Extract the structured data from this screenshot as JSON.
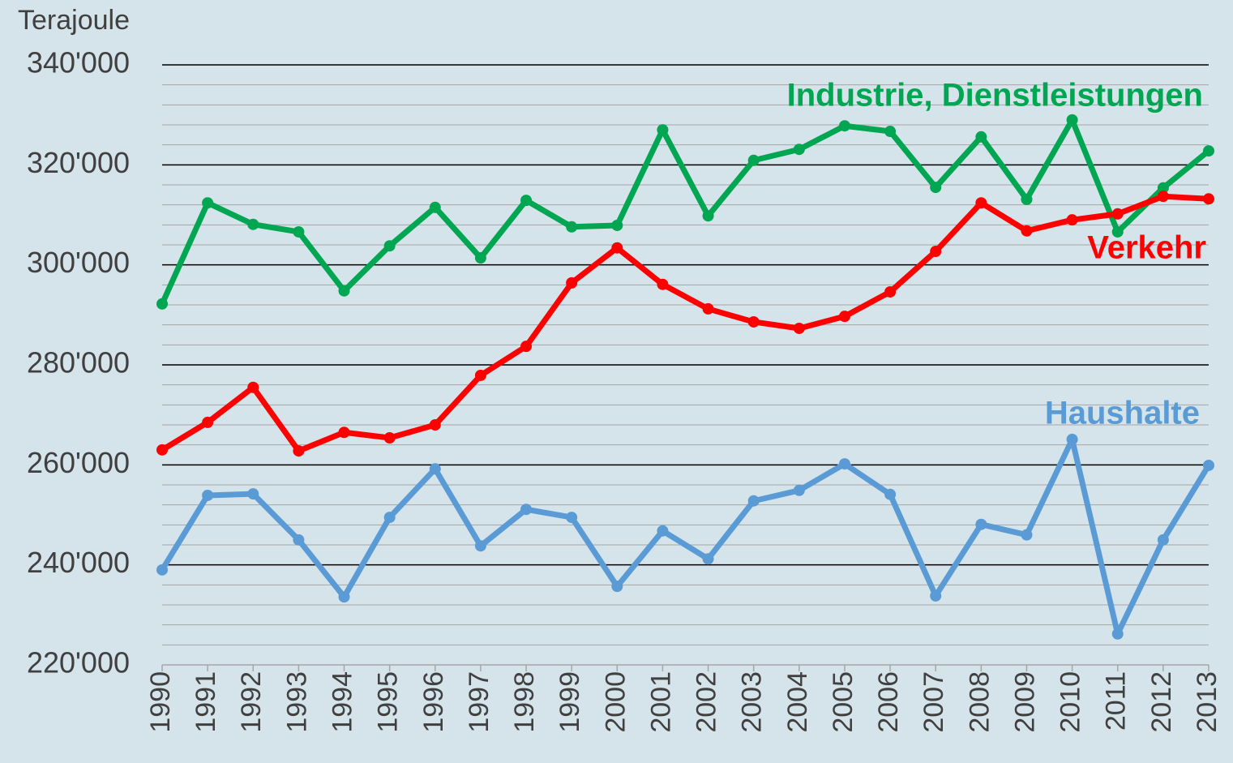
{
  "chart_data": {
    "type": "line",
    "y_axis_label": "Terajoule",
    "x": [
      "1990",
      "1991",
      "1992",
      "1993",
      "1994",
      "1995",
      "1996",
      "1997",
      "1998",
      "1999",
      "2000",
      "2001",
      "2002",
      "2003",
      "2004",
      "2005",
      "2006",
      "2007",
      "2008",
      "2009",
      "2010",
      "2011",
      "2012",
      "2013"
    ],
    "series": [
      {
        "name": "Industrie, Dienstleistungen",
        "color": "#00a651",
        "values": [
          292200,
          312400,
          308100,
          306600,
          294800,
          303800,
          311500,
          301400,
          312900,
          307600,
          307900,
          327000,
          309800,
          320900,
          323100,
          327800,
          326700,
          315500,
          325600,
          313100,
          329000,
          306600,
          315400,
          322800
        ]
      },
      {
        "name": "Verkehr",
        "color": "#ff0000",
        "values": [
          263000,
          268500,
          275500,
          262800,
          266500,
          265400,
          268000,
          277900,
          283700,
          296400,
          303400,
          296100,
          291200,
          288600,
          287300,
          289700,
          294600,
          302700,
          312400,
          306800,
          309000,
          310200,
          313700,
          313200
        ]
      },
      {
        "name": "Haushalte",
        "color": "#5b9bd5",
        "values": [
          239000,
          253900,
          254200,
          245000,
          233600,
          249500,
          259200,
          243800,
          251100,
          249500,
          235700,
          246800,
          241200,
          252800,
          254900,
          260200,
          254100,
          233800,
          248100,
          246000,
          265100,
          226200,
          245000,
          259900
        ]
      }
    ],
    "ylim": [
      220000,
      340000
    ],
    "yticks": [
      {
        "value": 220000,
        "label": "220'000"
      },
      {
        "value": 240000,
        "label": "240'000"
      },
      {
        "value": 260000,
        "label": "260'000"
      },
      {
        "value": 280000,
        "label": "280'000"
      },
      {
        "value": 300000,
        "label": "300'000"
      },
      {
        "value": 320000,
        "label": "320'000"
      },
      {
        "value": 340000,
        "label": "340'000"
      }
    ],
    "minor_yticks": [
      224000,
      228000,
      232000,
      236000,
      244000,
      248000,
      252000,
      256000,
      264000,
      268000,
      272000,
      276000,
      284000,
      288000,
      292000,
      296000,
      304000,
      308000,
      312000,
      316000,
      324000,
      328000,
      332000,
      336000
    ],
    "grid": true
  }
}
